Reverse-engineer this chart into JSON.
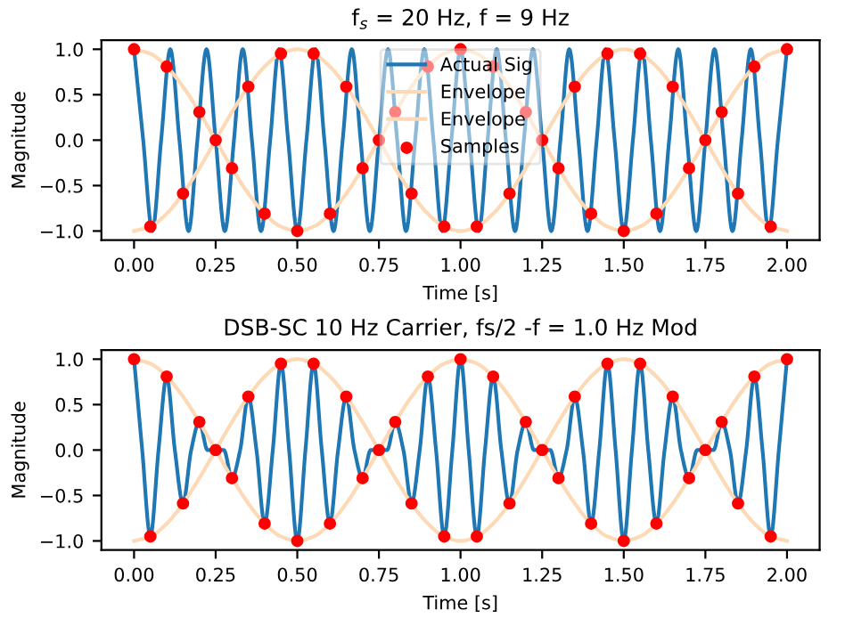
{
  "chart_data": [
    {
      "type": "line",
      "title": "f$_{s}$ = 20 Hz, f = 9 Hz",
      "xlabel": "Time [s]",
      "ylabel": "Magnitude",
      "legend": "top",
      "xlim": [
        -0.1,
        2.1
      ],
      "ylim": [
        -1.1,
        1.1
      ],
      "xticks": [
        {
          "value": 0,
          "label": "0.00"
        },
        {
          "value": 0.25,
          "label": "0.25"
        },
        {
          "value": 0.5,
          "label": "0.50"
        },
        {
          "value": 0.75,
          "label": "0.75"
        },
        {
          "value": 1,
          "label": "1.00"
        },
        {
          "value": 1.25,
          "label": "1.25"
        },
        {
          "value": 1.5,
          "label": "1.50"
        },
        {
          "value": 1.75,
          "label": "1.75"
        },
        {
          "value": 2,
          "label": "2.00"
        }
      ],
      "yticks": [
        {
          "value": -1,
          "label": "−1.0"
        },
        {
          "value": -0.5,
          "label": "−0.5"
        },
        {
          "value": 0,
          "label": "0.0"
        },
        {
          "value": 0.5,
          "label": "0.5"
        },
        {
          "value": 1,
          "label": "1.0"
        }
      ],
      "series": [
        {
          "name": "Actual Sig",
          "color": "#1f77b4",
          "x": [
            0,
            0.028,
            0.056,
            0.083,
            0.111,
            0.139,
            0.167,
            0.194,
            0.222,
            0.25,
            0.278,
            0.306,
            0.333,
            0.361,
            0.389,
            0.417,
            0.444,
            0.472,
            0.5,
            0.528,
            0.556,
            0.583,
            0.611,
            0.639,
            0.667,
            0.694,
            0.722,
            0.75,
            0.778,
            0.806,
            0.833,
            0.861,
            0.889,
            0.917,
            0.944,
            0.972,
            1.0,
            1.028,
            1.056,
            1.083,
            1.111,
            1.139,
            1.167,
            1.194,
            1.222,
            1.25,
            1.278,
            1.306,
            1.333,
            1.361,
            1.389,
            1.417,
            1.444,
            1.472,
            1.5,
            1.528,
            1.556,
            1.583,
            1.611,
            1.639,
            1.667,
            1.694,
            1.722,
            1.75,
            1.778,
            1.806,
            1.833,
            1.861,
            1.889,
            1.917,
            1.944,
            1.972,
            2.0
          ],
          "values": [
            1,
            0,
            -1,
            0,
            1,
            0,
            -1,
            0,
            1,
            0,
            -1,
            0,
            1,
            0,
            -1,
            0,
            1,
            0,
            -1,
            0,
            1,
            0,
            -1,
            0,
            1,
            0,
            -1,
            0,
            1,
            0,
            -1,
            0,
            1,
            0,
            -1,
            0,
            1,
            0,
            -1,
            0,
            1,
            0,
            -1,
            0,
            1,
            0,
            -1,
            0,
            1,
            0,
            -1,
            0,
            1,
            0,
            -1,
            0,
            1,
            0,
            -1,
            0,
            1,
            0,
            -1,
            0,
            1,
            0,
            -1,
            0,
            1,
            0,
            -1,
            0,
            1
          ]
        },
        {
          "name": "Envelope",
          "type": "line",
          "color": "#fdd9b5",
          "x": [
            0,
            0.05,
            0.1,
            0.15,
            0.2,
            0.25,
            0.3,
            0.35,
            0.4,
            0.45,
            0.5,
            0.55,
            0.6,
            0.65,
            0.7,
            0.75,
            0.8,
            0.85,
            0.9,
            0.95,
            1.0,
            1.05,
            1.1,
            1.15,
            1.2,
            1.25,
            1.3,
            1.35,
            1.4,
            1.45,
            1.5,
            1.55,
            1.6,
            1.65,
            1.7,
            1.75,
            1.8,
            1.85,
            1.9,
            1.95,
            2.0
          ],
          "values": [
            1,
            0.951,
            0.809,
            0.588,
            0.309,
            0,
            -0.309,
            -0.588,
            -0.809,
            -0.951,
            -1,
            -0.951,
            -0.809,
            -0.588,
            -0.309,
            0,
            0.309,
            0.588,
            0.809,
            0.951,
            1,
            0.951,
            0.809,
            0.588,
            0.309,
            0,
            -0.309,
            -0.588,
            -0.809,
            -0.951,
            -1,
            -0.951,
            -0.809,
            -0.588,
            -0.309,
            0,
            0.309,
            0.588,
            0.809,
            0.951,
            1
          ]
        },
        {
          "name": "Envelope",
          "type": "line",
          "color": "#fdd9b5",
          "x": [
            0,
            0.05,
            0.1,
            0.15,
            0.2,
            0.25,
            0.3,
            0.35,
            0.4,
            0.45,
            0.5,
            0.55,
            0.6,
            0.65,
            0.7,
            0.75,
            0.8,
            0.85,
            0.9,
            0.95,
            1.0,
            1.05,
            1.1,
            1.15,
            1.2,
            1.25,
            1.3,
            1.35,
            1.4,
            1.45,
            1.5,
            1.55,
            1.6,
            1.65,
            1.7,
            1.75,
            1.8,
            1.85,
            1.9,
            1.95,
            2.0
          ],
          "values": [
            -1,
            -0.951,
            -0.809,
            -0.588,
            -0.309,
            0,
            0.309,
            0.588,
            0.809,
            0.951,
            1,
            0.951,
            0.809,
            0.588,
            0.309,
            0,
            -0.309,
            -0.588,
            -0.809,
            -0.951,
            -1,
            -0.951,
            -0.809,
            -0.588,
            -0.309,
            0,
            0.309,
            0.588,
            0.809,
            0.951,
            1,
            0.951,
            0.809,
            0.588,
            0.309,
            0,
            -0.309,
            -0.588,
            -0.809,
            -0.951,
            -1
          ]
        },
        {
          "name": "Samples",
          "type": "scatter",
          "marker": "circle",
          "color": "#ff0000",
          "x": [
            0,
            0.05,
            0.1,
            0.15,
            0.2,
            0.25,
            0.3,
            0.35,
            0.4,
            0.45,
            0.5,
            0.55,
            0.6,
            0.65,
            0.7,
            0.75,
            0.8,
            0.85,
            0.9,
            0.95,
            1.0,
            1.05,
            1.1,
            1.15,
            1.2,
            1.25,
            1.3,
            1.35,
            1.4,
            1.45,
            1.5,
            1.55,
            1.6,
            1.65,
            1.7,
            1.75,
            1.8,
            1.85,
            1.9,
            1.95,
            2.0
          ],
          "values": [
            1,
            -0.951,
            0.809,
            -0.588,
            0.309,
            0,
            -0.309,
            0.588,
            -0.809,
            0.951,
            -1,
            0.951,
            -0.809,
            0.588,
            -0.309,
            0,
            0.309,
            -0.588,
            0.809,
            -0.951,
            1,
            -0.951,
            0.809,
            -0.588,
            0.309,
            0,
            -0.309,
            0.588,
            -0.809,
            0.951,
            -1,
            0.951,
            -0.809,
            0.588,
            -0.309,
            0,
            0.309,
            -0.588,
            0.809,
            -0.951,
            1
          ]
        }
      ]
    },
    {
      "type": "line",
      "title": "DSB-SC 10 Hz Carrier, fs/2 -f = 1.0 Hz Mod",
      "xlabel": "Time [s]",
      "ylabel": "Magnitude",
      "xlim": [
        -0.1,
        2.1
      ],
      "ylim": [
        -1.1,
        1.1
      ],
      "xticks": [
        {
          "value": 0,
          "label": "0.00"
        },
        {
          "value": 0.25,
          "label": "0.25"
        },
        {
          "value": 0.5,
          "label": "0.50"
        },
        {
          "value": 0.75,
          "label": "0.75"
        },
        {
          "value": 1,
          "label": "1.00"
        },
        {
          "value": 1.25,
          "label": "1.25"
        },
        {
          "value": 1.5,
          "label": "1.50"
        },
        {
          "value": 1.75,
          "label": "1.75"
        },
        {
          "value": 2,
          "label": "2.00"
        }
      ],
      "yticks": [
        {
          "value": -1,
          "label": "−1.0"
        },
        {
          "value": -0.5,
          "label": "−0.5"
        },
        {
          "value": 0,
          "label": "0.0"
        },
        {
          "value": 0.5,
          "label": "0.5"
        },
        {
          "value": 1,
          "label": "1.0"
        }
      ],
      "series": [
        {
          "color": "#1f77b4",
          "x": [
            0,
            0.025,
            0.05,
            0.075,
            0.1,
            0.125,
            0.15,
            0.175,
            0.2,
            0.225,
            0.25,
            0.275,
            0.3,
            0.325,
            0.35,
            0.375,
            0.4,
            0.425,
            0.45,
            0.475,
            0.5,
            0.525,
            0.55,
            0.575,
            0.6,
            0.625,
            0.65,
            0.675,
            0.7,
            0.725,
            0.75,
            0.775,
            0.8,
            0.825,
            0.85,
            0.875,
            0.9,
            0.925,
            0.95,
            0.975,
            1.0,
            1.025,
            1.05,
            1.075,
            1.1,
            1.125,
            1.15,
            1.175,
            1.2,
            1.225,
            1.25,
            1.275,
            1.3,
            1.325,
            1.35,
            1.375,
            1.4,
            1.425,
            1.45,
            1.475,
            1.5,
            1.525,
            1.55,
            1.575,
            1.6,
            1.625,
            1.65,
            1.675,
            1.7,
            1.725,
            1.75,
            1.775,
            1.8,
            1.825,
            1.85,
            1.875,
            1.9,
            1.925,
            1.95,
            1.975,
            2.0
          ],
          "values": [
            1,
            0,
            -0.951,
            0,
            0.809,
            0,
            -0.588,
            0,
            0.309,
            0,
            0,
            0,
            -0.309,
            0,
            0.588,
            0,
            -0.809,
            0,
            0.951,
            0,
            -1,
            0,
            0.951,
            0,
            -0.809,
            0,
            0.588,
            0,
            -0.309,
            0,
            0,
            0,
            0.309,
            0,
            -0.588,
            0,
            0.809,
            0,
            -0.951,
            0,
            1,
            0,
            -0.951,
            0,
            0.809,
            0,
            -0.588,
            0,
            0.309,
            0,
            0,
            0,
            -0.309,
            0,
            0.588,
            0,
            -0.809,
            0,
            0.951,
            0,
            -1,
            0,
            0.951,
            0,
            -0.809,
            0,
            0.588,
            0,
            -0.309,
            0,
            0,
            0,
            0.309,
            0,
            -0.588,
            0,
            0.809,
            0,
            -0.951,
            0,
            1
          ]
        },
        {
          "type": "line",
          "color": "#fdd9b5",
          "x": [
            0,
            0.05,
            0.1,
            0.15,
            0.2,
            0.25,
            0.3,
            0.35,
            0.4,
            0.45,
            0.5,
            0.55,
            0.6,
            0.65,
            0.7,
            0.75,
            0.8,
            0.85,
            0.9,
            0.95,
            1.0,
            1.05,
            1.1,
            1.15,
            1.2,
            1.25,
            1.3,
            1.35,
            1.4,
            1.45,
            1.5,
            1.55,
            1.6,
            1.65,
            1.7,
            1.75,
            1.8,
            1.85,
            1.9,
            1.95,
            2.0
          ],
          "values": [
            1,
            0.951,
            0.809,
            0.588,
            0.309,
            0,
            -0.309,
            -0.588,
            -0.809,
            -0.951,
            -1,
            -0.951,
            -0.809,
            -0.588,
            -0.309,
            0,
            0.309,
            0.588,
            0.809,
            0.951,
            1,
            0.951,
            0.809,
            0.588,
            0.309,
            0,
            -0.309,
            -0.588,
            -0.809,
            -0.951,
            -1,
            -0.951,
            -0.809,
            -0.588,
            -0.309,
            0,
            0.309,
            0.588,
            0.809,
            0.951,
            1
          ]
        },
        {
          "type": "line",
          "color": "#fdd9b5",
          "x": [
            0,
            0.05,
            0.1,
            0.15,
            0.2,
            0.25,
            0.3,
            0.35,
            0.4,
            0.45,
            0.5,
            0.55,
            0.6,
            0.65,
            0.7,
            0.75,
            0.8,
            0.85,
            0.9,
            0.95,
            1.0,
            1.05,
            1.1,
            1.15,
            1.2,
            1.25,
            1.3,
            1.35,
            1.4,
            1.45,
            1.5,
            1.55,
            1.6,
            1.65,
            1.7,
            1.75,
            1.8,
            1.85,
            1.9,
            1.95,
            2.0
          ],
          "values": [
            -1,
            -0.951,
            -0.809,
            -0.588,
            -0.309,
            0,
            0.309,
            0.588,
            0.809,
            0.951,
            1,
            0.951,
            0.809,
            0.588,
            0.309,
            0,
            -0.309,
            -0.588,
            -0.809,
            -0.951,
            -1,
            -0.951,
            -0.809,
            -0.588,
            -0.309,
            0,
            0.309,
            0.588,
            0.809,
            0.951,
            1,
            0.951,
            0.809,
            0.588,
            0.309,
            0,
            -0.309,
            -0.588,
            -0.809,
            -0.951,
            -1
          ]
        },
        {
          "type": "scatter",
          "marker": "circle",
          "color": "#ff0000",
          "x": [
            0,
            0.05,
            0.1,
            0.15,
            0.2,
            0.25,
            0.3,
            0.35,
            0.4,
            0.45,
            0.5,
            0.55,
            0.6,
            0.65,
            0.7,
            0.75,
            0.8,
            0.85,
            0.9,
            0.95,
            1.0,
            1.05,
            1.1,
            1.15,
            1.2,
            1.25,
            1.3,
            1.35,
            1.4,
            1.45,
            1.5,
            1.55,
            1.6,
            1.65,
            1.7,
            1.75,
            1.8,
            1.85,
            1.9,
            1.95,
            2.0
          ],
          "values": [
            1,
            -0.951,
            0.809,
            -0.588,
            0.309,
            0,
            -0.309,
            0.588,
            -0.809,
            0.951,
            -1,
            0.951,
            -0.809,
            0.588,
            -0.309,
            0,
            0.309,
            -0.588,
            0.809,
            -0.951,
            1,
            -0.951,
            0.809,
            -0.588,
            0.309,
            0,
            -0.309,
            0.588,
            -0.809,
            0.951,
            -1,
            0.951,
            -0.809,
            0.588,
            -0.309,
            0,
            0.309,
            -0.588,
            0.809,
            -0.951,
            1
          ]
        }
      ]
    }
  ]
}
